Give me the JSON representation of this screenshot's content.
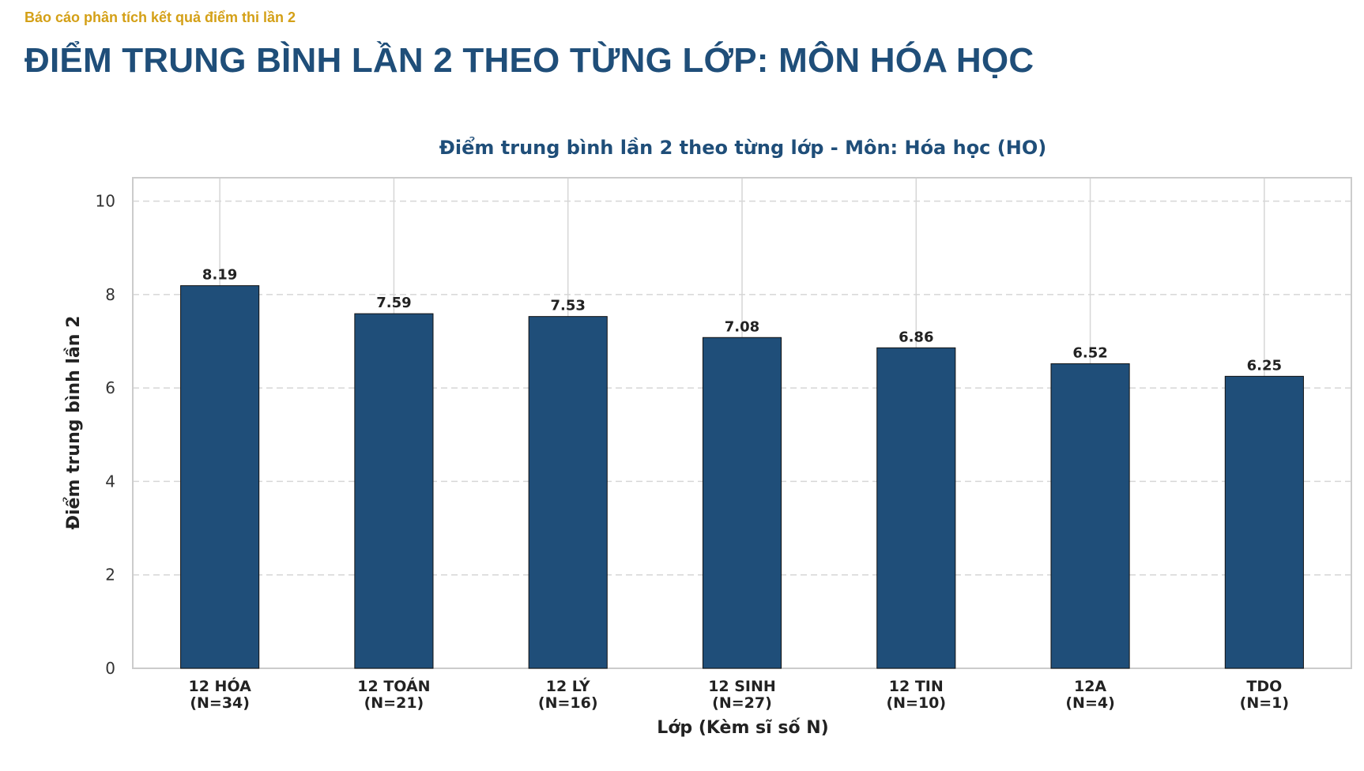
{
  "header": {
    "report_label": "Báo cáo phân tích kết quả điểm thi lần 2",
    "page_title": "ĐIỂM TRUNG BÌNH LẦN 2 THEO TỪNG LỚP: MÔN HÓA HỌC"
  },
  "colors": {
    "bar": "#1f4e79",
    "label_accent": "#d4a017",
    "title": "#1f4e79"
  },
  "chart_data": {
    "type": "bar",
    "title": "Điểm trung bình lần 2 theo từng lớp - Môn: Hóa học (HO)",
    "xlabel": "Lớp (Kèm sĩ số N)",
    "ylabel": "Điểm trung bình lần 2",
    "ylim": [
      0,
      10.5
    ],
    "yticks": [
      "0",
      "2",
      "4",
      "6",
      "8",
      "10"
    ],
    "grid": true,
    "categories": [
      {
        "name": "12 HÓA",
        "count": "(N=34)"
      },
      {
        "name": "12 TOÁN",
        "count": "(N=21)"
      },
      {
        "name": "12 LÝ",
        "count": "(N=16)"
      },
      {
        "name": "12 SINH",
        "count": "(N=27)"
      },
      {
        "name": "12 TIN",
        "count": "(N=10)"
      },
      {
        "name": "12A",
        "count": "(N=4)"
      },
      {
        "name": "TDO",
        "count": "(N=1)"
      }
    ],
    "values": [
      8.19,
      7.59,
      7.53,
      7.08,
      6.86,
      6.52,
      6.25
    ],
    "value_labels": [
      "8.19",
      "7.59",
      "7.53",
      "7.08",
      "6.86",
      "6.52",
      "6.25"
    ]
  }
}
